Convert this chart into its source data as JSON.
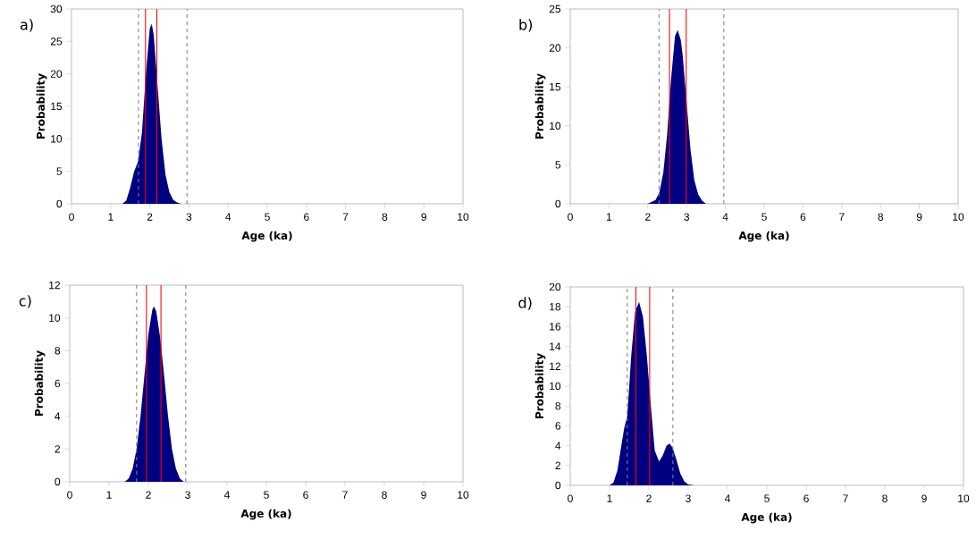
{
  "chart_data": [
    {
      "type": "area",
      "annotations": [
        "a)"
      ],
      "xlabel": "Age (ka)",
      "ylabel": "Probability",
      "xlim": [
        0,
        10
      ],
      "ylim": [
        0,
        30
      ],
      "xticks": [
        0,
        1,
        2,
        3,
        4,
        5,
        6,
        7,
        8,
        9,
        10
      ],
      "yticks": [
        0,
        5,
        10,
        15,
        20,
        25,
        30
      ],
      "series": [
        {
          "color": "#000080",
          "x": [
            0,
            1.3,
            1.4,
            1.5,
            1.6,
            1.7,
            1.8,
            1.9,
            2.0,
            2.05,
            2.1,
            2.2,
            2.3,
            2.4,
            2.5,
            2.6,
            2.7,
            2.8,
            10
          ],
          "values": [
            0,
            0,
            0.5,
            2.5,
            5,
            6.5,
            11,
            20,
            27,
            27.7,
            26,
            18,
            10,
            4.5,
            1.8,
            0.6,
            0.2,
            0,
            0
          ]
        }
      ],
      "ref_lines": [
        {
          "axis": "x",
          "value": 1.71,
          "color": "#808080",
          "line_style": "dashed"
        },
        {
          "axis": "x",
          "value": 2.95,
          "color": "#808080",
          "line_style": "dashed"
        },
        {
          "axis": "x",
          "value": 1.89,
          "color": "#ff0000",
          "line_style": "solid"
        },
        {
          "axis": "x",
          "value": 2.18,
          "color": "#ff0000",
          "line_style": "solid"
        }
      ]
    },
    {
      "type": "area",
      "annotations": [
        "b)"
      ],
      "xlabel": "Age (ka)",
      "ylabel": "Probability",
      "xlim": [
        0,
        10
      ],
      "ylim": [
        0,
        25
      ],
      "xticks": [
        0,
        1,
        2,
        3,
        4,
        5,
        6,
        7,
        8,
        9,
        10
      ],
      "yticks": [
        0,
        5,
        10,
        15,
        20,
        25
      ],
      "series": [
        {
          "color": "#000080",
          "x": [
            0,
            2.0,
            2.2,
            2.3,
            2.4,
            2.5,
            2.6,
            2.7,
            2.77,
            2.85,
            2.9,
            3.0,
            3.1,
            3.2,
            3.3,
            3.4,
            3.5,
            10
          ],
          "values": [
            0,
            0,
            0.5,
            1.5,
            4,
            9,
            16,
            21.5,
            22.3,
            21,
            19,
            13,
            7,
            3,
            1.2,
            0.4,
            0,
            0
          ]
        }
      ],
      "ref_lines": [
        {
          "axis": "x",
          "value": 2.29,
          "color": "#808080",
          "line_style": "dashed"
        },
        {
          "axis": "x",
          "value": 3.96,
          "color": "#808080",
          "line_style": "dashed"
        },
        {
          "axis": "x",
          "value": 2.56,
          "color": "#ff0000",
          "line_style": "solid"
        },
        {
          "axis": "x",
          "value": 2.99,
          "color": "#ff0000",
          "line_style": "solid"
        }
      ]
    },
    {
      "type": "area",
      "annotations": [
        "c)"
      ],
      "xlabel": "Age (ka)",
      "ylabel": "Probability",
      "xlim": [
        0,
        10
      ],
      "ylim": [
        0,
        12
      ],
      "xticks": [
        0,
        1,
        2,
        3,
        4,
        5,
        6,
        7,
        8,
        9,
        10
      ],
      "yticks": [
        0,
        2,
        4,
        6,
        8,
        10,
        12
      ],
      "series": [
        {
          "color": "#000080",
          "x": [
            0,
            1.4,
            1.5,
            1.6,
            1.7,
            1.8,
            1.9,
            2.0,
            2.1,
            2.14,
            2.2,
            2.3,
            2.4,
            2.5,
            2.6,
            2.7,
            2.8,
            2.9,
            10
          ],
          "values": [
            0,
            0,
            0.2,
            0.8,
            2,
            4,
            6.5,
            9,
            10.5,
            10.7,
            10.4,
            8.8,
            6.5,
            4,
            2,
            0.8,
            0.2,
            0,
            0
          ]
        }
      ],
      "ref_lines": [
        {
          "axis": "x",
          "value": 1.7,
          "color": "#808080",
          "line_style": "dashed"
        },
        {
          "axis": "x",
          "value": 2.95,
          "color": "#808080",
          "line_style": "dashed"
        },
        {
          "axis": "x",
          "value": 1.95,
          "color": "#ff0000",
          "line_style": "solid"
        },
        {
          "axis": "x",
          "value": 2.32,
          "color": "#ff0000",
          "line_style": "solid"
        }
      ]
    },
    {
      "type": "area",
      "annotations": [
        "d)"
      ],
      "xlabel": "Age (ka)",
      "ylabel": "Probability",
      "xlim": [
        0,
        10
      ],
      "ylim": [
        0,
        20
      ],
      "xticks": [
        0,
        1,
        2,
        3,
        4,
        5,
        6,
        7,
        8,
        9,
        10
      ],
      "yticks": [
        0,
        2,
        4,
        6,
        8,
        10,
        12,
        14,
        16,
        18,
        20
      ],
      "series": [
        {
          "color": "#000080",
          "x": [
            0,
            1.0,
            1.1,
            1.2,
            1.3,
            1.37,
            1.45,
            1.55,
            1.65,
            1.75,
            1.85,
            1.95,
            2.05,
            2.15,
            2.26,
            2.35,
            2.45,
            2.53,
            2.6,
            2.7,
            2.8,
            2.9,
            3.0,
            3.15,
            10
          ],
          "values": [
            0,
            0,
            0.3,
            1.5,
            4,
            5.7,
            7,
            13,
            17.5,
            18.5,
            17,
            13,
            8,
            3.5,
            2.4,
            3,
            4,
            4.2,
            3.8,
            2.6,
            1.2,
            0.4,
            0.1,
            0,
            0
          ]
        }
      ],
      "ref_lines": [
        {
          "axis": "x",
          "value": 1.45,
          "color": "#808080",
          "line_style": "dashed"
        },
        {
          "axis": "x",
          "value": 2.61,
          "color": "#808080",
          "line_style": "dashed"
        },
        {
          "axis": "x",
          "value": 1.67,
          "color": "#ff0000",
          "line_style": "solid"
        },
        {
          "axis": "x",
          "value": 2.02,
          "color": "#ff0000",
          "line_style": "solid"
        }
      ]
    }
  ]
}
